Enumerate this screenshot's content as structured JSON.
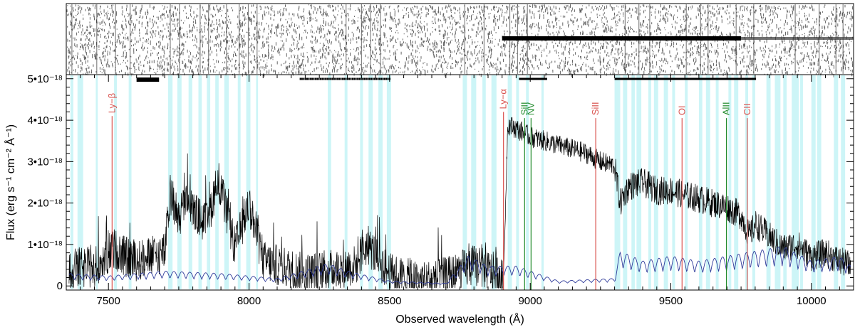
{
  "chart_data": {
    "type": "line",
    "xlabel": "Observed wavelength (Å)",
    "ylabel": "Flux (erg s⁻¹ cm⁻² Å⁻¹)",
    "xlim": [
      7350,
      10150
    ],
    "ylim": [
      -1e-19,
      5.1e-18
    ],
    "x_ticks": [
      {
        "value": 7500,
        "label": "7500"
      },
      {
        "value": 8000,
        "label": "8000"
      },
      {
        "value": 8500,
        "label": "8500"
      },
      {
        "value": 9000,
        "label": "9000"
      },
      {
        "value": 9500,
        "label": "9500"
      },
      {
        "value": 10000,
        "label": "10000"
      }
    ],
    "y_ticks": [
      {
        "value": 0,
        "label": "0"
      },
      {
        "value": 1e-18,
        "label": "1•10⁻¹⁸"
      },
      {
        "value": 2e-18,
        "label": "2•10⁻¹⁸"
      },
      {
        "value": 3e-18,
        "label": "3•10⁻¹⁸"
      },
      {
        "value": 4e-18,
        "label": "4•10⁻¹⁸"
      },
      {
        "value": 5e-18,
        "label": "5•10⁻¹⁸"
      }
    ],
    "grid": false,
    "legend": "none",
    "panels": [
      "2D spectrum image (top)",
      "1D spectrum (bottom)"
    ],
    "series": [
      {
        "color": "#000000",
        "x": [
          7360,
          7450,
          7520,
          7560,
          7600,
          7650,
          7700,
          7720,
          7750,
          7780,
          7800,
          7850,
          7890,
          7950,
          8000,
          8050,
          8100,
          8200,
          8300,
          8380,
          8420,
          8500,
          8600,
          8700,
          8800,
          8880,
          8905,
          8920,
          8950,
          9000,
          9050,
          9100,
          9150,
          9200,
          9250,
          9300,
          9320,
          9350,
          9400,
          9450,
          9500,
          9550,
          9600,
          9650,
          9700,
          9750,
          9780,
          9800,
          9850,
          9900,
          9950,
          10000,
          10050,
          10100,
          10140
        ],
        "y": [
          4e-19,
          4.5e-19,
          9e-19,
          7e-19,
          6e-19,
          7e-19,
          8e-19,
          2.2e-18,
          1.6e-18,
          2.2e-18,
          1.8e-18,
          1.5e-18,
          2.6e-18,
          9e-19,
          2e-18,
          6e-19,
          5e-19,
          3e-19,
          4e-19,
          5e-19,
          1e-18,
          3e-19,
          1e-19,
          2e-19,
          5e-19,
          3e-19,
          1e-19,
          3.9e-18,
          3.8e-18,
          3.6e-18,
          3.5e-18,
          3.4e-18,
          3.3e-18,
          3.2e-18,
          3e-18,
          2.9e-18,
          2e-18,
          2.4e-18,
          2.5e-18,
          2.3e-18,
          2.3e-18,
          2.2e-18,
          2.1e-18,
          2e-18,
          1.9e-18,
          1.7e-18,
          1.2e-18,
          1.5e-18,
          1.2e-18,
          9e-19,
          1e-18,
          7e-19,
          8e-19,
          6e-19,
          5e-19
        ]
      },
      {
        "color": "#2f3b9a",
        "x": [
          7360,
          7500,
          7700,
          7900,
          8100,
          8280,
          8350,
          8500,
          8700,
          8780,
          8850,
          8950,
          9100,
          9300,
          9320,
          9400,
          9500,
          9600,
          9700,
          9800,
          9900,
          10000,
          10100,
          10140
        ],
        "y": [
          2.5e-19,
          2e-19,
          3e-19,
          2.5e-19,
          1.5e-19,
          4.5e-19,
          3e-19,
          1e-19,
          5e-20,
          6e-19,
          4e-19,
          4e-19,
          1e-19,
          1.5e-19,
          7e-19,
          5e-19,
          6e-19,
          5e-19,
          6e-19,
          7e-19,
          8e-19,
          5e-19,
          6e-19,
          4e-19
        ]
      }
    ],
    "skyline_color": "#c8f4f6",
    "sky_bands": [
      [
        7365,
        7375
      ],
      [
        7390,
        7410
      ],
      [
        7455,
        7462
      ],
      [
        7520,
        7530
      ],
      [
        7572,
        7582
      ],
      [
        7712,
        7728
      ],
      [
        7745,
        7760
      ],
      [
        7785,
        7798
      ],
      [
        7820,
        7832
      ],
      [
        7850,
        7862
      ],
      [
        7880,
        7892
      ],
      [
        7912,
        7928
      ],
      [
        7960,
        7970
      ],
      [
        7990,
        8005
      ],
      [
        8025,
        8032
      ],
      [
        8280,
        8292
      ],
      [
        8340,
        8350
      ],
      [
        8395,
        8405
      ],
      [
        8425,
        8440
      ],
      [
        8460,
        8475
      ],
      [
        8490,
        8505
      ],
      [
        8760,
        8775
      ],
      [
        8790,
        8808
      ],
      [
        8830,
        8842
      ],
      [
        8862,
        8880
      ],
      [
        8920,
        8935
      ],
      [
        8950,
        8960
      ],
      [
        8985,
        8995
      ],
      [
        9040,
        9048
      ],
      [
        9300,
        9320
      ],
      [
        9330,
        9345
      ],
      [
        9360,
        9372
      ],
      [
        9378,
        9395
      ],
      [
        9420,
        9430
      ],
      [
        9440,
        9455
      ],
      [
        9475,
        9490
      ],
      [
        9505,
        9515
      ],
      [
        9550,
        9560
      ],
      [
        9600,
        9612
      ],
      [
        9625,
        9640
      ],
      [
        9660,
        9670
      ],
      [
        9705,
        9715
      ],
      [
        9725,
        9740
      ],
      [
        9765,
        9775
      ],
      [
        9790,
        9800
      ],
      [
        9840,
        9855
      ],
      [
        9870,
        9890
      ],
      [
        9900,
        9912
      ],
      [
        9930,
        9955
      ],
      [
        9960,
        9970
      ],
      [
        10000,
        10015
      ],
      [
        10020,
        10035
      ],
      [
        10080,
        10095
      ],
      [
        10105,
        10120
      ]
    ],
    "spectral_lines": [
      {
        "label": "Ly−β",
        "wavelength": 7513,
        "flux": 4.1e-18,
        "color": "#d9534f"
      },
      {
        "label": "Ly−α",
        "wavelength": 8905,
        "flux": 4.2e-18,
        "color": "#d9534f"
      },
      {
        "label": "SiII",
        "wavelength": 8980,
        "flux": 4.05e-18,
        "color": "#1f8a2a"
      },
      {
        "label": "NV",
        "wavelength": 9003,
        "flux": 4.05e-18,
        "color": "#1f8a2a"
      },
      {
        "label": "SiII",
        "wavelength": 9233,
        "flux": 4.05e-18,
        "color": "#d9534f"
      },
      {
        "label": "OI",
        "wavelength": 9540,
        "flux": 4.05e-18,
        "color": "#d9534f"
      },
      {
        "label": "AlII",
        "wavelength": 9698,
        "flux": 4.05e-18,
        "color": "#1f8a2a"
      },
      {
        "label": "CII",
        "wavelength": 9772,
        "flux": 4.05e-18,
        "color": "#d9534f"
      }
    ]
  }
}
